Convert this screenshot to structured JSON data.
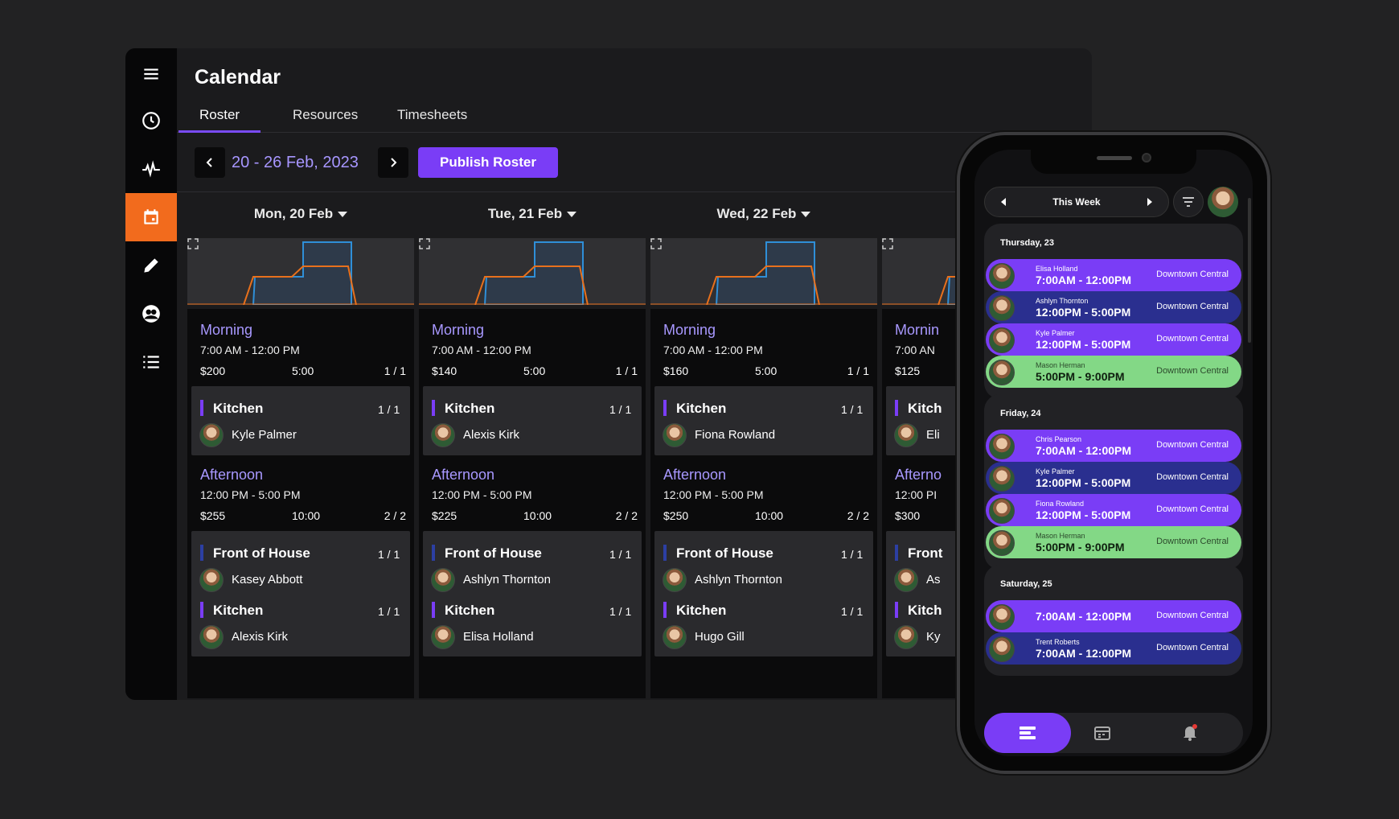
{
  "header": {
    "title": "Calendar"
  },
  "tabs": [
    {
      "label": "Roster"
    },
    {
      "label": "Resources"
    },
    {
      "label": "Timesheets"
    }
  ],
  "toolbar": {
    "date_range": "20 - 26 Feb, 2023",
    "publish_label": "Publish Roster"
  },
  "sidebar": {
    "items": [
      {
        "icon": "menu-icon"
      },
      {
        "icon": "clock-icon"
      },
      {
        "icon": "activity-icon"
      },
      {
        "icon": "calendar-icon",
        "active": true
      },
      {
        "icon": "pencil-icon"
      },
      {
        "icon": "people-icon"
      },
      {
        "icon": "list-icon"
      }
    ]
  },
  "colors": {
    "accent": "#7a3df6",
    "active_nav": "#f26b1d",
    "shift_name": "#a898ff",
    "chart_demand": "#2f8fd8",
    "chart_staff": "#e8701c"
  },
  "days": [
    {
      "header": "Mon, 20 Feb",
      "morning": {
        "name": "Morning",
        "time": "7:00 AM - 12:00 PM",
        "cost": "$200",
        "hours": "5:00",
        "fill": "1 / 1"
      },
      "morning_roles": [
        {
          "role": "Kitchen",
          "count": "1 / 1",
          "person": "Kyle Palmer"
        }
      ],
      "afternoon": {
        "name": "Afternoon",
        "time": "12:00 PM - 5:00 PM",
        "cost": "$255",
        "hours": "10:00",
        "fill": "2 / 2"
      },
      "afternoon_roles": [
        {
          "role": "Front of House",
          "count": "1 / 1",
          "person": "Kasey Abbott"
        },
        {
          "role": "Kitchen",
          "count": "1 / 1",
          "person": "Alexis Kirk"
        }
      ]
    },
    {
      "header": "Tue, 21 Feb",
      "morning": {
        "name": "Morning",
        "time": "7:00 AM - 12:00 PM",
        "cost": "$140",
        "hours": "5:00",
        "fill": "1 / 1"
      },
      "morning_roles": [
        {
          "role": "Kitchen",
          "count": "1 / 1",
          "person": "Alexis Kirk"
        }
      ],
      "afternoon": {
        "name": "Afternoon",
        "time": "12:00 PM - 5:00 PM",
        "cost": "$225",
        "hours": "10:00",
        "fill": "2 / 2"
      },
      "afternoon_roles": [
        {
          "role": "Front of House",
          "count": "1 / 1",
          "person": "Ashlyn Thornton"
        },
        {
          "role": "Kitchen",
          "count": "1 / 1",
          "person": "Elisa Holland"
        }
      ]
    },
    {
      "header": "Wed, 22 Feb",
      "morning": {
        "name": "Morning",
        "time": "7:00 AM - 12:00 PM",
        "cost": "$160",
        "hours": "5:00",
        "fill": "1 / 1"
      },
      "morning_roles": [
        {
          "role": "Kitchen",
          "count": "1 / 1",
          "person": "Fiona Rowland"
        }
      ],
      "afternoon": {
        "name": "Afternoon",
        "time": "12:00 PM - 5:00 PM",
        "cost": "$250",
        "hours": "10:00",
        "fill": "2 / 2"
      },
      "afternoon_roles": [
        {
          "role": "Front of House",
          "count": "1 / 1",
          "person": "Ashlyn Thornton"
        },
        {
          "role": "Kitchen",
          "count": "1 / 1",
          "person": "Hugo Gill"
        }
      ]
    },
    {
      "header": "",
      "morning": {
        "name": "Mornin",
        "time": "7:00 AN",
        "cost": "$125",
        "hours": "",
        "fill": ""
      },
      "morning_roles": [
        {
          "role": "Kitch",
          "count": "",
          "person": "Eli"
        }
      ],
      "afternoon": {
        "name": "Afterno",
        "time": "12:00 PI",
        "cost": "$300",
        "hours": "",
        "fill": ""
      },
      "afternoon_roles": [
        {
          "role": "Front",
          "count": "",
          "person": "As"
        },
        {
          "role": "Kitch",
          "count": "",
          "person": "Ky"
        }
      ]
    }
  ],
  "phone": {
    "week_label": "This Week",
    "groups": [
      {
        "label": "Thursday, 23",
        "shifts": [
          {
            "name": "Elisa Holland",
            "time": "7:00AM - 12:00PM",
            "location": "Downtown Central",
            "style": "purple"
          },
          {
            "name": "Ashlyn Thornton",
            "time": "12:00PM - 5:00PM",
            "location": "Downtown Central",
            "style": "navy"
          },
          {
            "name": "Kyle Palmer",
            "time": "12:00PM - 5:00PM",
            "location": "Downtown Central",
            "style": "purple"
          },
          {
            "name": "Mason Herman",
            "time": "5:00PM - 9:00PM",
            "location": "Downtown Central",
            "style": "green"
          }
        ]
      },
      {
        "label": "Friday, 24",
        "shifts": [
          {
            "name": "Chris Pearson",
            "time": "7:00AM - 12:00PM",
            "location": "Downtown Central",
            "style": "purple"
          },
          {
            "name": "Kyle Palmer",
            "time": "12:00PM - 5:00PM",
            "location": "Downtown Central",
            "style": "navy"
          },
          {
            "name": "Fiona Rowland",
            "time": "12:00PM - 5:00PM",
            "location": "Downtown Central",
            "style": "purple"
          },
          {
            "name": "Mason Herman",
            "time": "5:00PM - 9:00PM",
            "location": "Downtown Central",
            "style": "green"
          }
        ]
      },
      {
        "label": "Saturday, 25",
        "shifts": [
          {
            "name": "",
            "time": "7:00AM - 12:00PM",
            "location": "Downtown Central",
            "style": "purple"
          },
          {
            "name": "Trent Roberts",
            "time": "7:00AM - 12:00PM",
            "location": "Downtown Central",
            "style": "navy"
          }
        ]
      }
    ],
    "tabs": [
      {
        "icon": "roster-icon",
        "active": true
      },
      {
        "icon": "calendar-icon"
      },
      {
        "icon": "bell-icon",
        "badge": true
      }
    ]
  }
}
